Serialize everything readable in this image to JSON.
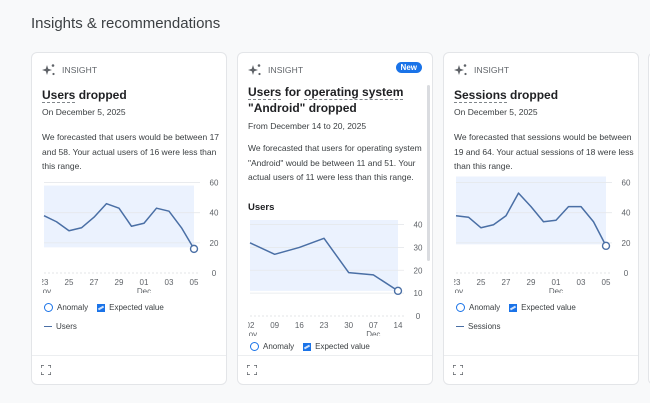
{
  "section": {
    "title": "Insights & recommendations"
  },
  "colors": {
    "accent": "#1a73e8",
    "line": "#4a6fa5",
    "band": "#e8f0fe",
    "badge": "#1a73e8"
  },
  "cards": [
    {
      "type_label": "INSIGHT",
      "title_prefix": "Users",
      "title_rest": " dropped",
      "date": "On December 5, 2025",
      "description": "We forecasted that users would be between 17 and 58. Your actual users of 16 were less than this range.",
      "legend": {
        "anomaly": "Anomaly",
        "expected": "Expected value",
        "series": "Users"
      },
      "footer_icon": "expand-icon"
    },
    {
      "type_label": "INSIGHT",
      "badge": "New",
      "title_prefix": "Users",
      "title_mid": " for ",
      "title_dim": "operating system",
      "title_rest": " \"Android\" dropped",
      "date": "From December 14 to 20, 2025",
      "description": "We forecasted that users for operating system \"Android\" would be between 11 and 51. Your actual users of 11 were less than this range.",
      "chart_label": "Users",
      "legend": {
        "anomaly": "Anomaly",
        "expected": "Expected value"
      },
      "footer_icon": "expand-icon"
    },
    {
      "type_label": "INSIGHT",
      "title_prefix": "Sessions",
      "title_rest": " dropped",
      "date": "On December 5, 2025",
      "description": "We forecasted that sessions would be between 19 and 64. Your actual sessions of 18 were less than this range.",
      "legend": {
        "anomaly": "Anomaly",
        "expected": "Expected value",
        "series": "Sessions"
      },
      "footer_icon": "expand-icon"
    }
  ],
  "chart_data": [
    {
      "type": "line",
      "title": "Users dropped",
      "x": [
        "23 Nov",
        "24",
        "25",
        "26",
        "27",
        "28",
        "29",
        "30",
        "01 Dec",
        "02",
        "03",
        "04",
        "05"
      ],
      "x_ticks": [
        [
          "23",
          "Nov"
        ],
        [
          "25",
          ""
        ],
        [
          "27",
          ""
        ],
        [
          "29",
          ""
        ],
        [
          "01",
          "Dec"
        ],
        [
          "03",
          ""
        ],
        [
          "05",
          ""
        ]
      ],
      "series": [
        {
          "name": "Users",
          "values": [
            38,
            34,
            28,
            30,
            37,
            46,
            43,
            31,
            33,
            43,
            41,
            30,
            16
          ]
        }
      ],
      "expected_band": {
        "lower": 17,
        "upper": 58
      },
      "anomaly_index": 12,
      "y_ticks": [
        0,
        20,
        40,
        60
      ],
      "ylim": [
        0,
        65
      ]
    },
    {
      "type": "line",
      "title": "Users for operating system \"Android\" dropped",
      "ylabel": "Users",
      "x": [
        "02 Nov",
        "09",
        "16",
        "23",
        "30",
        "07 Dec",
        "14"
      ],
      "x_ticks": [
        [
          "02",
          "Nov"
        ],
        [
          "09",
          ""
        ],
        [
          "16",
          ""
        ],
        [
          "23",
          ""
        ],
        [
          "30",
          ""
        ],
        [
          "07",
          "Dec"
        ],
        [
          "14",
          ""
        ]
      ],
      "series": [
        {
          "name": "Users",
          "values": [
            32,
            27,
            30,
            34,
            19,
            18,
            11
          ]
        }
      ],
      "expected_band": {
        "lower": 11,
        "upper": 51
      },
      "anomaly_index": 6,
      "y_ticks": [
        0,
        10,
        20,
        30,
        40
      ],
      "ylim": [
        0,
        42
      ]
    },
    {
      "type": "line",
      "title": "Sessions dropped",
      "x": [
        "23 Nov",
        "24",
        "25",
        "26",
        "27",
        "28",
        "29",
        "30",
        "01 Dec",
        "02",
        "03",
        "04",
        "05"
      ],
      "x_ticks": [
        [
          "23",
          "Nov"
        ],
        [
          "25",
          ""
        ],
        [
          "27",
          ""
        ],
        [
          "29",
          ""
        ],
        [
          "01",
          "Dec"
        ],
        [
          "03",
          ""
        ],
        [
          "05",
          ""
        ]
      ],
      "series": [
        {
          "name": "Sessions",
          "values": [
            38,
            37,
            30,
            32,
            38,
            53,
            44,
            34,
            35,
            44,
            44,
            34,
            18
          ]
        }
      ],
      "expected_band": {
        "lower": 19,
        "upper": 64
      },
      "anomaly_index": 12,
      "y_ticks": [
        0,
        20,
        40,
        60
      ],
      "ylim": [
        0,
        65
      ]
    }
  ]
}
